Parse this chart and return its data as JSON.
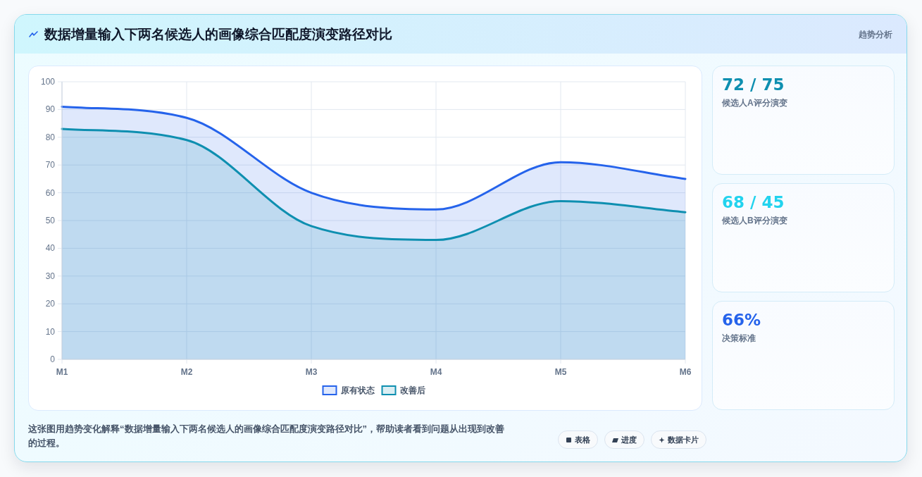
{
  "chart_data": [
    {
      "type": "area",
      "title": "数据增量输入下两名候选人的画像综合匹配度演变路径对比",
      "categories": [
        "M1",
        "M2",
        "M3",
        "M4",
        "M5",
        "M6"
      ],
      "series": [
        {
          "name": "原有状态",
          "color": "#2563eb",
          "values": [
            91,
            87,
            60,
            54,
            71,
            65
          ]
        },
        {
          "name": "改善后",
          "color": "#0e8fb0",
          "values": [
            83,
            79,
            48,
            43,
            57,
            53
          ]
        }
      ],
      "ylim": [
        0,
        100
      ],
      "yticks": [
        0,
        10,
        20,
        30,
        40,
        50,
        60,
        70,
        80,
        90,
        100
      ],
      "grid": true,
      "legend": "bottom",
      "annotations": [
        "趋势分析",
        "这张图用趋势变化解释“数据增量输入下两名候选人的画像综合匹配度演变路径对比”，帮助读者看到问题从出现到改善的过程。",
        "表格",
        "进度",
        "数据卡片"
      ]
    },
    {
      "type": "other",
      "annotations": [
        "72 / 75",
        "候选人A评分演变"
      ]
    },
    {
      "type": "other",
      "annotations": [
        "68 / 45",
        "候选人B评分演变"
      ]
    },
    {
      "type": "other",
      "annotations": [
        "66%",
        "决策标准"
      ]
    }
  ]
}
